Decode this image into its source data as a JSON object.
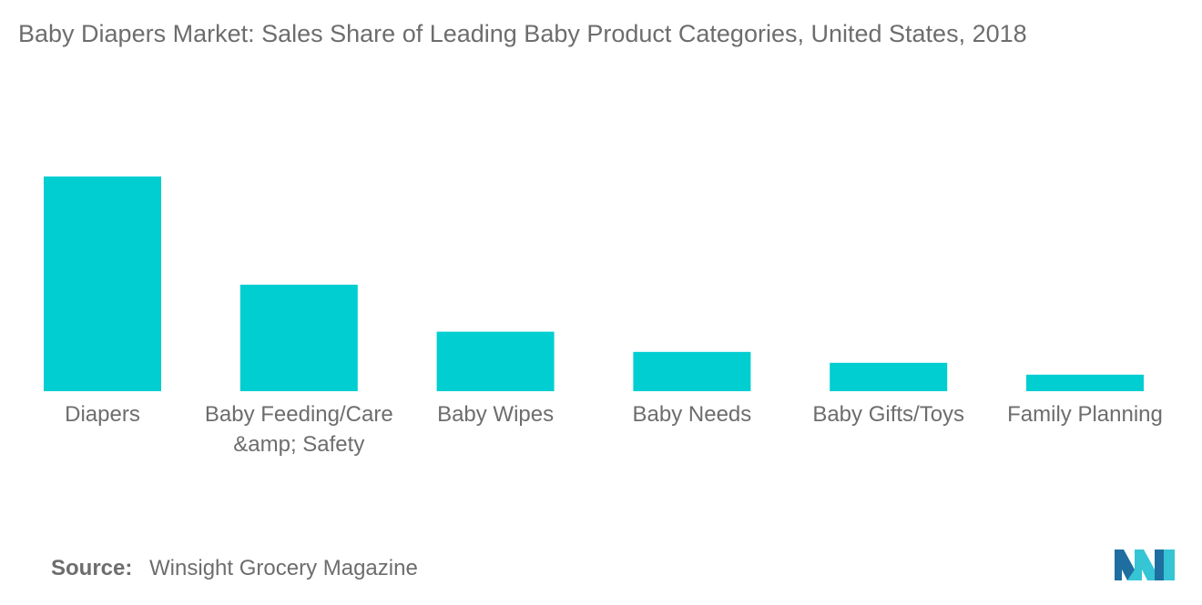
{
  "title": "Baby Diapers Market: Sales Share of Leading Baby Product Categories, United States, 2018",
  "source": {
    "label": "Source:",
    "text": "Winsight Grocery Magazine"
  },
  "colors": {
    "bar": "#00ced1",
    "text": "#6d6d6d",
    "logo_dark": "#1e6f9f",
    "logo_light": "#35c5d5"
  },
  "logo_icon": "mordor-intelligence-logo",
  "chart_data": {
    "type": "bar",
    "title": "Baby Diapers Market: Sales Share of Leading Baby Product Categories, United States, 2018",
    "xlabel": "",
    "ylabel": "",
    "categories": [
      "Diapers",
      "Baby Feeding/Care &amp; Safety",
      "Baby Wipes",
      "Baby Needs",
      "Baby Gifts/Toys",
      "Family Planning"
    ],
    "values": [
      100,
      49.6,
      27.7,
      18.3,
      13.2,
      7.7
    ],
    "ylim": [
      0,
      100
    ],
    "grid": false,
    "legend": "none",
    "value_labels": false
  }
}
